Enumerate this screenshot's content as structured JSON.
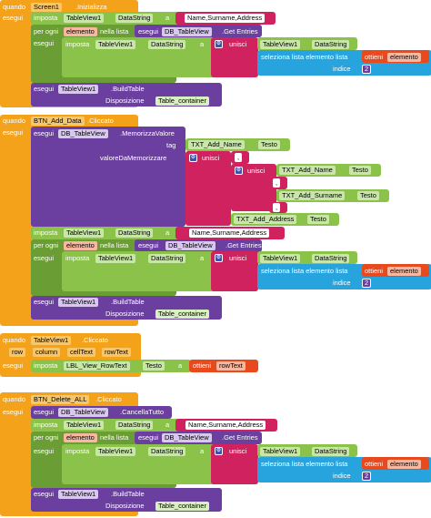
{
  "b1": {
    "event_when": "quando",
    "event_component": "Screen1",
    "event_name": ".Inizializza",
    "do": "esegui",
    "set": "imposta",
    "component": "TableView1",
    "prop_datastring": "DataString",
    "to": "a",
    "string_value": "Name,Surname,Address",
    "for_each": "per ogni",
    "item_var": "elemento",
    "in_list": "nella lista",
    "call": "esegui",
    "db": "DB_TableView",
    "get_entries": ".Get Entries",
    "join": "unisci",
    "select_item": "seleziona lista elemento  lista",
    "get": "ottieni",
    "index": "indice",
    "index_value": "2",
    "build": ".BuildTable",
    "disposition": "Disposizione",
    "container": "Table_container"
  },
  "b2": {
    "event_when": "quando",
    "event_component": "BTN_Add_Data",
    "event_name": ".Cliccato",
    "do": "esegui",
    "call": "esegui",
    "db": "DB_TableView",
    "store": ".MemorizzaValore",
    "tag": "tag",
    "value_to_store": "valoreDaMemorizzare",
    "txt_name": "TXT_Add_Name",
    "txt_surname": "TXT_Add_Surname",
    "txt_address": "TXT_Add_Address",
    "text_prop": "Testo",
    "join": "unisci",
    "comma": ",",
    "set": "imposta",
    "component": "TableView1",
    "prop_datastring": "DataString",
    "to": "a",
    "string_value": "Name,Surname,Address",
    "for_each": "per ogni",
    "item_var": "elemento",
    "in_list": "nella lista",
    "get_entries": ".Get Entries",
    "select_item": "seleziona lista elemento  lista",
    "get": "ottieni",
    "index": "indice",
    "index_value": "2",
    "build": ".BuildTable",
    "disposition": "Disposizione",
    "container": "Table_container"
  },
  "b3": {
    "event_when": "quando",
    "event_component": "TableView1",
    "event_name": ".Cliccato",
    "params": [
      "row",
      "column",
      "cellText",
      "rowText"
    ],
    "do": "esegui",
    "set": "imposta",
    "label": "LBL_View_RowText",
    "text_prop": "Testo",
    "to": "a",
    "get": "ottieni",
    "row_text": "rowText"
  },
  "b4": {
    "event_when": "quando",
    "event_component": "BTN_Delete_ALL",
    "event_name": ".Cliccato",
    "do": "esegui",
    "call": "esegui",
    "db": "DB_TableView",
    "clear_all": ".CancellaTutto",
    "set": "imposta",
    "component": "TableView1",
    "prop_datastring": "DataString",
    "to": "a",
    "string_value": "Name,Surname,Address",
    "for_each": "per ogni",
    "item_var": "elemento",
    "in_list": "nella lista",
    "get_entries": ".Get Entries",
    "join": "unisci",
    "select_item": "seleziona lista elemento  lista",
    "get": "ottieni",
    "index": "indice",
    "index_value": "2",
    "build": ".BuildTable",
    "disposition": "Disposizione",
    "container": "Table_container"
  },
  "colors": {
    "event": "#f3a21a",
    "component": "#6b3fa0",
    "text": "#d0225f",
    "logic": "#8bc34a",
    "list": "#27a4dd",
    "variable": "#e8491d"
  }
}
